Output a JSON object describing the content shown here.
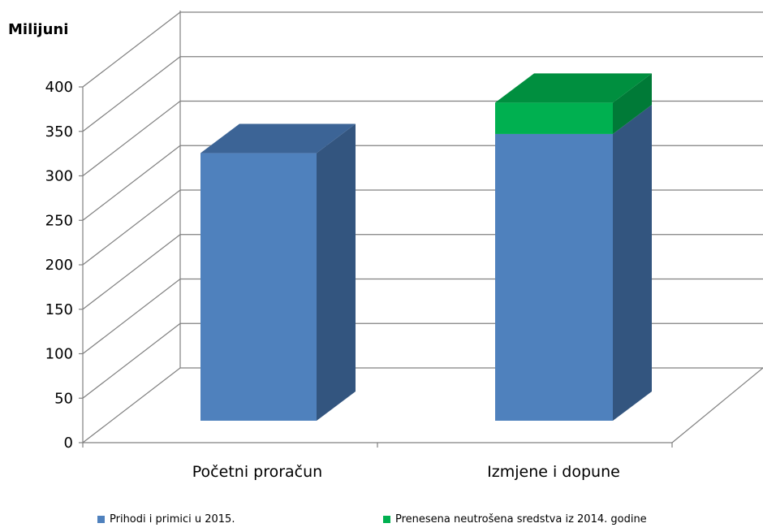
{
  "chart_data": {
    "type": "bar",
    "stacked": true,
    "three_d": true,
    "unit_label": "Milijuni",
    "categories": [
      "Početni proračun",
      "Izmjene i dopune"
    ],
    "series": [
      {
        "name": "Prihodi i primici u 2015.",
        "values": [
          307,
          329
        ],
        "color": "#4F81BD",
        "side_color": "#33557F",
        "top_color": "#3C6496"
      },
      {
        "name": "Prenesena neutrošena sredstva iz 2014. godine",
        "values": [
          0,
          36
        ],
        "color": "#00B050",
        "side_color": "#007A37",
        "top_color": "#008F3F"
      }
    ],
    "y_ticks": [
      "0",
      "50",
      "100",
      "150",
      "200",
      "250",
      "300",
      "350",
      "400"
    ],
    "ylim": [
      0,
      400
    ],
    "grid": true,
    "legend_position": "bottom"
  }
}
